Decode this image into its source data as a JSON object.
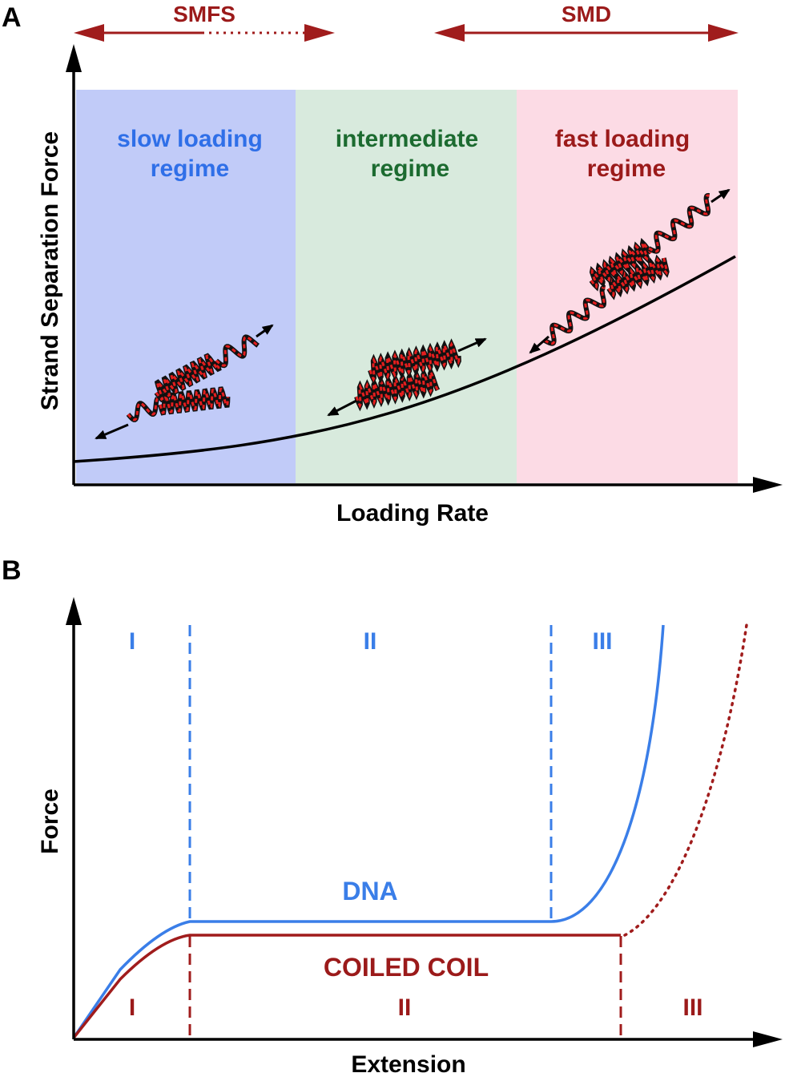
{
  "panel_a": {
    "letter": "A",
    "smfs_label": "SMFS",
    "smd_label": "SMD",
    "y_label": "Strand Separation Force",
    "x_label": "Loading Rate",
    "regimes": [
      {
        "line1": "slow loading",
        "line2": "regime",
        "text_color": "#2f6fe8",
        "bg_color": "#c1cbf8"
      },
      {
        "line1": "intermediate",
        "line2": "regime",
        "text_color": "#1c6b30",
        "bg_color": "#d8eadd"
      },
      {
        "line1": "fast loading",
        "line2": "regime",
        "text_color": "#9b1a1a",
        "bg_color": "#fcdbe5"
      }
    ],
    "arrow_color": "#a01c1c"
  },
  "panel_b": {
    "letter": "B",
    "y_label": "Force",
    "x_label": "Extension",
    "dna_label": "DNA",
    "coiled_coil_label": "COILED COIL",
    "dna_regions": [
      "I",
      "II",
      "III"
    ],
    "cc_regions": [
      "I",
      "II",
      "III"
    ],
    "dna_color": "#3a7ee8",
    "cc_color": "#a01c1c"
  }
}
